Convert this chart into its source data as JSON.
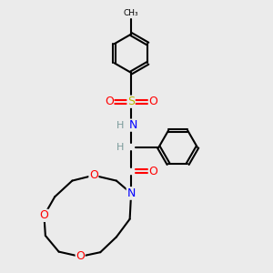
{
  "bg_color": "#ebebeb",
  "bond_color": "#000000",
  "atom_colors": {
    "N": "#0000ff",
    "O": "#ff0000",
    "S": "#b8b800",
    "H": "#7a9a9a",
    "C": "#000000"
  },
  "figsize": [
    3.0,
    3.0
  ],
  "dpi": 100
}
